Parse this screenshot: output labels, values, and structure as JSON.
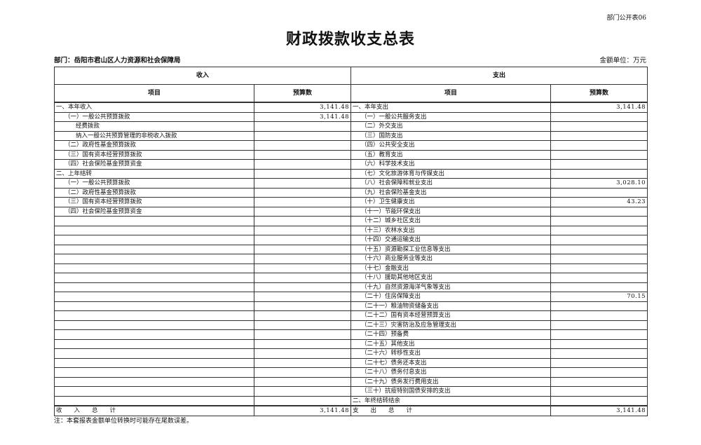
{
  "form_code": "部门公开表06",
  "title": "财政拨款收支总表",
  "department": "部门：岳阳市君山区人力资源和社会保障局",
  "unit": "金额单位：万元",
  "headers": {
    "income": "收入",
    "expense": "支出",
    "item": "项目",
    "budget": "预算数"
  },
  "rows": [
    {
      "li": "一、本年收入",
      "la": "3,141.48",
      "ri": "一、本年支出",
      "ra": "3,141.48",
      "lind": 0
    },
    {
      "li": "（一）一般公共预算拨款",
      "la": "3,141.48",
      "ri": "（一）一般公共服务支出",
      "ra": "",
      "lind": 0
    },
    {
      "li": "经费拨款",
      "la": "",
      "ri": "（二）外交支出",
      "ra": "",
      "lind": 2
    },
    {
      "li": "纳入一般公共预算管理的非税收入拨款",
      "la": "",
      "ri": "（三）国防支出",
      "ra": "",
      "lind": 2
    },
    {
      "li": "（二）政府性基金预算拨款",
      "la": "",
      "ri": "（四）公共安全支出",
      "ra": "",
      "lind": 0
    },
    {
      "li": "（三）国有资本经营预算拨款",
      "la": "",
      "ri": "（五）教育支出",
      "ra": "",
      "lind": 0
    },
    {
      "li": "（四）社会保险基金预算资金",
      "la": "",
      "ri": "（六）科学技术支出",
      "ra": "",
      "lind": 0
    },
    {
      "li": "二、上年结转",
      "la": "",
      "ri": "（七）文化旅游体育与传媒支出",
      "ra": "",
      "lind": 0
    },
    {
      "li": "（一）一般公共预算拨款",
      "la": "",
      "ri": "（八）社会保障和就业支出",
      "ra": "3,028.10",
      "lind": 0
    },
    {
      "li": "（二）政府性基金预算拨款",
      "la": "",
      "ri": "（九）社会保险基金支出",
      "ra": "",
      "lind": 0
    },
    {
      "li": "（三）国有资本经营预算拨款",
      "la": "",
      "ri": "（十）卫生健康支出",
      "ra": "43.23",
      "lind": 0
    },
    {
      "li": "（四）社会保险基金预算资金",
      "la": "",
      "ri": "（十一）节能环保支出",
      "ra": "",
      "lind": 0
    },
    {
      "li": "",
      "la": "",
      "ri": "（十二）城乡社区支出",
      "ra": ""
    },
    {
      "li": "",
      "la": "",
      "ri": "（十三）农林水支出",
      "ra": ""
    },
    {
      "li": "",
      "la": "",
      "ri": "（十四）交通运输支出",
      "ra": ""
    },
    {
      "li": "",
      "la": "",
      "ri": "（十五）资源勘探工业信息等支出",
      "ra": ""
    },
    {
      "li": "",
      "la": "",
      "ri": "（十六）商业服务业等支出",
      "ra": ""
    },
    {
      "li": "",
      "la": "",
      "ri": "（十七）金融支出",
      "ra": ""
    },
    {
      "li": "",
      "la": "",
      "ri": "（十八）援助其他地区支出",
      "ra": ""
    },
    {
      "li": "",
      "la": "",
      "ri": "（十九）自然资源海洋气象等支出",
      "ra": ""
    },
    {
      "li": "",
      "la": "",
      "ri": "（二十）住房保障支出",
      "ra": "70.15"
    },
    {
      "li": "",
      "la": "",
      "ri": "（二十一）粮油物资储备支出",
      "ra": ""
    },
    {
      "li": "",
      "la": "",
      "ri": "（二十二）国有资本经营预算支出",
      "ra": ""
    },
    {
      "li": "",
      "la": "",
      "ri": "（二十三）灾害防治及应急管理支出",
      "ra": ""
    },
    {
      "li": "",
      "la": "",
      "ri": "（二十四）预备费",
      "ra": ""
    },
    {
      "li": "",
      "la": "",
      "ri": "（二十五）其他支出",
      "ra": ""
    },
    {
      "li": "",
      "la": "",
      "ri": "（二十六）转移性支出",
      "ra": ""
    },
    {
      "li": "",
      "la": "",
      "ri": "（二十七）债务还本支出",
      "ra": ""
    },
    {
      "li": "",
      "la": "",
      "ri": "（二十八）债务付息支出",
      "ra": ""
    },
    {
      "li": "",
      "la": "",
      "ri": "（二十九）债务发行费用支出",
      "ra": ""
    },
    {
      "li": "",
      "la": "",
      "ri": "（三十）抗疫特别国债安排的支出",
      "ra": ""
    },
    {
      "li": "",
      "la": "",
      "ri": "二、年终结转结余",
      "ra": ""
    }
  ],
  "totals": {
    "income_label": "收　　入　　总　　计",
    "income_amount": "3,141.48",
    "expense_label": "支　　出　　总　　计",
    "expense_amount": "3,141.48"
  },
  "note": "注：本套报表金额单位转换时可能存在尾数误差。"
}
